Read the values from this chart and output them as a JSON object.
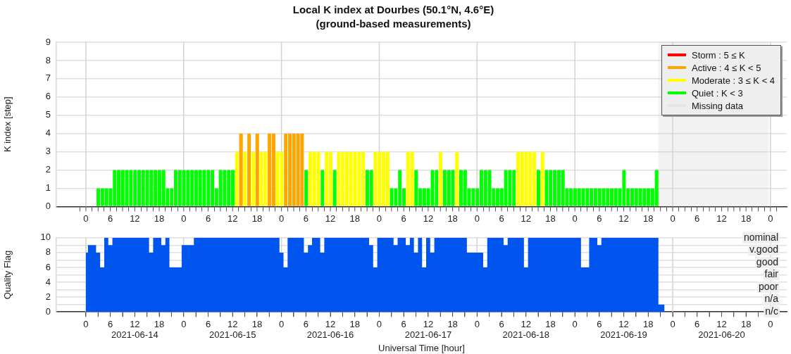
{
  "chart_data": [
    {
      "type": "bar",
      "title": "Local K index at Dourbes (50.1°N, 4.6°E)",
      "subtitle": "(ground-based measurements)",
      "ylabel": "K index [step]",
      "series": [
        {
          "name": "Storm : 5 ≤ K",
          "color": "#ff0000"
        },
        {
          "name": "Active : 4 ≤ K < 5",
          "color": "#ffa500",
          "x": [
            "2021-06-15T14:00",
            "2021-06-15T16:00",
            "2021-06-15T18:00",
            "2021-06-15T21:00",
            "2021-06-15T22:00",
            "2021-06-16T01:00",
            "2021-06-16T02:00",
            "2021-06-16T03:00",
            "2021-06-16T04:00",
            "2021-06-16T05:00"
          ],
          "values": [
            4,
            4,
            4,
            4,
            4,
            4,
            4,
            4,
            4,
            4
          ]
        },
        {
          "name": "Moderate : 3 ≤ K < 4",
          "color": "#ffff00",
          "x": [
            "2021-06-15T13:00",
            "2021-06-15T15:00",
            "2021-06-15T17:00",
            "2021-06-15T19:00",
            "2021-06-15T20:00",
            "2021-06-15T23:00",
            "2021-06-16T00:00",
            "2021-06-16T07:00",
            "2021-06-16T08:00",
            "2021-06-16T09:00",
            "2021-06-16T11:00",
            "2021-06-16T12:00",
            "2021-06-16T14:00",
            "2021-06-16T15:00",
            "2021-06-16T16:00",
            "2021-06-16T17:00",
            "2021-06-16T18:00",
            "2021-06-16T19:00",
            "2021-06-16T20:00",
            "2021-06-16T23:00",
            "2021-06-17T00:00",
            "2021-06-17T01:00",
            "2021-06-17T02:00",
            "2021-06-17T07:00",
            "2021-06-17T08:00",
            "2021-06-17T15:00",
            "2021-06-17T19:00",
            "2021-06-18T10:00",
            "2021-06-18T11:00",
            "2021-06-18T12:00",
            "2021-06-18T13:00",
            "2021-06-18T14:00",
            "2021-06-18T16:00"
          ],
          "values": [
            3,
            3,
            3,
            3,
            3,
            3,
            3,
            3,
            3,
            3,
            3,
            3,
            3,
            3,
            3,
            3,
            3,
            3,
            3,
            3,
            3,
            3,
            3,
            3,
            3,
            3,
            3,
            3,
            3,
            3,
            3,
            3,
            3
          ]
        },
        {
          "name": "Quiet : K < 3",
          "color": "#00ff00",
          "x": [
            "2021-06-14T03:00",
            "2021-06-14T04:00",
            "2021-06-14T05:00",
            "2021-06-14T06:00",
            "2021-06-14T07:00",
            "2021-06-14T08:00",
            "2021-06-14T09:00",
            "2021-06-14T10:00",
            "2021-06-14T11:00",
            "2021-06-14T12:00",
            "2021-06-14T13:00",
            "2021-06-14T14:00",
            "2021-06-14T15:00",
            "2021-06-14T16:00",
            "2021-06-14T17:00",
            "2021-06-14T18:00",
            "2021-06-14T19:00",
            "2021-06-14T20:00",
            "2021-06-14T21:00",
            "2021-06-14T22:00",
            "2021-06-14T23:00",
            "2021-06-15T00:00",
            "2021-06-15T01:00",
            "2021-06-15T02:00",
            "2021-06-15T03:00",
            "2021-06-15T04:00",
            "2021-06-15T05:00",
            "2021-06-15T06:00",
            "2021-06-15T07:00",
            "2021-06-15T08:00",
            "2021-06-15T09:00",
            "2021-06-15T10:00",
            "2021-06-15T11:00",
            "2021-06-15T12:00",
            "2021-06-16T06:00",
            "2021-06-16T10:00",
            "2021-06-16T13:00",
            "2021-06-16T21:00",
            "2021-06-16T22:00",
            "2021-06-17T03:00",
            "2021-06-17T04:00",
            "2021-06-17T05:00",
            "2021-06-17T06:00",
            "2021-06-17T09:00",
            "2021-06-17T10:00",
            "2021-06-17T11:00",
            "2021-06-17T12:00",
            "2021-06-17T13:00",
            "2021-06-17T14:00",
            "2021-06-17T16:00",
            "2021-06-17T17:00",
            "2021-06-17T18:00",
            "2021-06-17T20:00",
            "2021-06-17T21:00",
            "2021-06-17T22:00",
            "2021-06-17T23:00",
            "2021-06-18T00:00",
            "2021-06-18T01:00",
            "2021-06-18T02:00",
            "2021-06-18T03:00",
            "2021-06-18T04:00",
            "2021-06-18T05:00",
            "2021-06-18T06:00",
            "2021-06-18T07:00",
            "2021-06-18T08:00",
            "2021-06-18T09:00",
            "2021-06-18T15:00",
            "2021-06-18T17:00",
            "2021-06-18T18:00",
            "2021-06-18T19:00",
            "2021-06-18T20:00",
            "2021-06-18T21:00",
            "2021-06-18T22:00",
            "2021-06-18T23:00",
            "2021-06-19T00:00",
            "2021-06-19T01:00",
            "2021-06-19T02:00",
            "2021-06-19T03:00",
            "2021-06-19T04:00",
            "2021-06-19T05:00",
            "2021-06-19T06:00",
            "2021-06-19T07:00",
            "2021-06-19T08:00",
            "2021-06-19T09:00",
            "2021-06-19T10:00",
            "2021-06-19T11:00",
            "2021-06-19T12:00",
            "2021-06-19T13:00",
            "2021-06-19T14:00",
            "2021-06-19T15:00",
            "2021-06-19T16:00",
            "2021-06-19T17:00",
            "2021-06-19T18:00",
            "2021-06-19T19:00",
            "2021-06-19T20:00"
          ],
          "values": [
            1,
            1,
            1,
            1,
            2,
            2,
            2,
            2,
            2,
            2,
            2,
            2,
            2,
            2,
            2,
            2,
            2,
            1,
            1,
            2,
            2,
            2,
            2,
            2,
            2,
            2,
            2,
            2,
            2,
            1,
            2,
            2,
            2,
            2,
            2,
            2,
            2,
            2,
            2,
            1,
            1,
            2,
            1,
            2,
            1,
            1,
            1,
            2,
            2,
            2,
            2,
            2,
            2,
            2,
            1,
            1,
            1,
            2,
            2,
            2,
            1,
            1,
            1,
            2,
            2,
            2,
            2,
            2,
            2,
            2,
            2,
            2,
            1,
            1,
            1,
            1,
            1,
            1,
            1,
            1,
            1,
            1,
            1,
            1,
            1,
            1,
            2,
            1,
            1,
            1,
            1,
            1,
            1,
            1,
            2
          ]
        }
      ],
      "xlim": [
        "2021-06-13T16:45",
        "2021-06-21T04:00"
      ],
      "xticks": [
        {
          "value": "2021-06-14T00:00",
          "label": "0"
        },
        {
          "value": "2021-06-14T03:00",
          "label": null
        },
        {
          "value": "2021-06-14T06:00",
          "label": "6"
        },
        {
          "value": "2021-06-14T09:00",
          "label": null
        },
        {
          "value": "2021-06-14T12:00",
          "label": "12"
        },
        {
          "value": "2021-06-14T15:00",
          "label": null
        },
        {
          "value": "2021-06-14T18:00",
          "label": "18"
        },
        {
          "value": "2021-06-14T21:00",
          "label": null
        },
        {
          "value": "2021-06-15T00:00",
          "label": "0"
        },
        {
          "value": "2021-06-15T03:00",
          "label": null
        },
        {
          "value": "2021-06-15T06:00",
          "label": "6"
        },
        {
          "value": "2021-06-15T09:00",
          "label": null
        },
        {
          "value": "2021-06-15T12:00",
          "label": "12"
        },
        {
          "value": "2021-06-15T15:00",
          "label": null
        },
        {
          "value": "2021-06-15T18:00",
          "label": "18"
        },
        {
          "value": "2021-06-15T21:00",
          "label": null
        },
        {
          "value": "2021-06-16T00:00",
          "label": "0"
        },
        {
          "value": "2021-06-16T03:00",
          "label": null
        },
        {
          "value": "2021-06-16T06:00",
          "label": "6"
        },
        {
          "value": "2021-06-16T09:00",
          "label": null
        },
        {
          "value": "2021-06-16T12:00",
          "label": "12"
        },
        {
          "value": "2021-06-16T15:00",
          "label": null
        },
        {
          "value": "2021-06-16T18:00",
          "label": "18"
        },
        {
          "value": "2021-06-16T21:00",
          "label": null
        },
        {
          "value": "2021-06-17T00:00",
          "label": "0"
        },
        {
          "value": "2021-06-17T03:00",
          "label": null
        },
        {
          "value": "2021-06-17T06:00",
          "label": "6"
        },
        {
          "value": "2021-06-17T09:00",
          "label": null
        },
        {
          "value": "2021-06-17T12:00",
          "label": "12"
        },
        {
          "value": "2021-06-17T15:00",
          "label": null
        },
        {
          "value": "2021-06-17T18:00",
          "label": "18"
        },
        {
          "value": "2021-06-17T21:00",
          "label": null
        },
        {
          "value": "2021-06-18T00:00",
          "label": "0"
        },
        {
          "value": "2021-06-18T03:00",
          "label": null
        },
        {
          "value": "2021-06-18T06:00",
          "label": "6"
        },
        {
          "value": "2021-06-18T09:00",
          "label": null
        },
        {
          "value": "2021-06-18T12:00",
          "label": "12"
        },
        {
          "value": "2021-06-18T15:00",
          "label": null
        },
        {
          "value": "2021-06-18T18:00",
          "label": "18"
        },
        {
          "value": "2021-06-18T21:00",
          "label": null
        },
        {
          "value": "2021-06-19T00:00",
          "label": "0"
        },
        {
          "value": "2021-06-19T03:00",
          "label": null
        },
        {
          "value": "2021-06-19T06:00",
          "label": "6"
        },
        {
          "value": "2021-06-19T09:00",
          "label": null
        },
        {
          "value": "2021-06-19T12:00",
          "label": "12"
        },
        {
          "value": "2021-06-19T15:00",
          "label": null
        },
        {
          "value": "2021-06-19T18:00",
          "label": "18"
        },
        {
          "value": "2021-06-19T21:00",
          "label": null
        },
        {
          "value": "2021-06-20T00:00",
          "label": "0"
        },
        {
          "value": "2021-06-20T03:00",
          "label": null
        },
        {
          "value": "2021-06-20T06:00",
          "label": "6"
        },
        {
          "value": "2021-06-20T09:00",
          "label": null
        },
        {
          "value": "2021-06-20T12:00",
          "label": "12"
        },
        {
          "value": "2021-06-20T15:00",
          "label": null
        },
        {
          "value": "2021-06-20T18:00",
          "label": "18"
        },
        {
          "value": "2021-06-20T21:00",
          "label": null
        },
        {
          "value": "2021-06-21T00:00",
          "label": "0"
        }
      ],
      "ylim": [
        0,
        9
      ],
      "yticks": [
        0,
        1,
        2,
        3,
        4,
        5,
        6,
        7,
        8,
        9
      ],
      "grid": "y",
      "legend": "top right",
      "bands": [
        {
          "axis": "x",
          "from": "2021-06-19T20:30",
          "to": "2021-06-20T23:30",
          "label": "Missing data",
          "color": "#c0c0c0"
        }
      ],
      "ref_lines": [
        {
          "axis": "x",
          "value": "2021-06-14T00:00",
          "color": "#d3d3d3"
        },
        {
          "axis": "x",
          "value": "2021-06-15T00:00",
          "color": "#d3d3d3"
        },
        {
          "axis": "x",
          "value": "2021-06-16T00:00",
          "color": "#d3d3d3"
        },
        {
          "axis": "x",
          "value": "2021-06-17T00:00",
          "color": "#d3d3d3"
        },
        {
          "axis": "x",
          "value": "2021-06-18T00:00",
          "color": "#d3d3d3"
        },
        {
          "axis": "x",
          "value": "2021-06-19T00:00",
          "color": "#d3d3d3"
        },
        {
          "axis": "x",
          "value": "2021-06-20T00:00",
          "color": "#d3d3d3"
        },
        {
          "axis": "x",
          "value": "2021-06-21T00:00",
          "color": "#d3d3d3"
        }
      ]
    },
    {
      "type": "area",
      "ylabel": "Quality Flag",
      "xlabel": "Universal Time [hour]",
      "color": "#0055ee",
      "x": [
        "2021-06-14T00:00",
        "2021-06-14T01:00",
        "2021-06-14T02:00",
        "2021-06-14T03:00",
        "2021-06-14T04:00",
        "2021-06-14T05:00",
        "2021-06-14T06:00",
        "2021-06-14T07:00",
        "2021-06-14T08:00",
        "2021-06-14T09:00",
        "2021-06-14T10:00",
        "2021-06-14T11:00",
        "2021-06-14T12:00",
        "2021-06-14T13:00",
        "2021-06-14T14:00",
        "2021-06-14T15:00",
        "2021-06-14T16:00",
        "2021-06-14T17:00",
        "2021-06-14T18:00",
        "2021-06-14T19:00",
        "2021-06-14T20:00",
        "2021-06-14T21:00",
        "2021-06-14T22:00",
        "2021-06-14T23:00",
        "2021-06-15T00:00",
        "2021-06-15T01:00",
        "2021-06-15T02:00",
        "2021-06-15T03:00",
        "2021-06-15T04:00",
        "2021-06-15T05:00",
        "2021-06-15T06:00",
        "2021-06-15T07:00",
        "2021-06-15T08:00",
        "2021-06-15T09:00",
        "2021-06-15T10:00",
        "2021-06-15T11:00",
        "2021-06-15T12:00",
        "2021-06-15T13:00",
        "2021-06-15T14:00",
        "2021-06-15T15:00",
        "2021-06-15T16:00",
        "2021-06-15T17:00",
        "2021-06-15T18:00",
        "2021-06-15T19:00",
        "2021-06-15T20:00",
        "2021-06-15T21:00",
        "2021-06-15T22:00",
        "2021-06-15T23:00",
        "2021-06-16T00:00",
        "2021-06-16T01:00",
        "2021-06-16T02:00",
        "2021-06-16T03:00",
        "2021-06-16T04:00",
        "2021-06-16T05:00",
        "2021-06-16T06:00",
        "2021-06-16T07:00",
        "2021-06-16T08:00",
        "2021-06-16T09:00",
        "2021-06-16T10:00",
        "2021-06-16T11:00",
        "2021-06-16T12:00",
        "2021-06-16T13:00",
        "2021-06-16T14:00",
        "2021-06-16T15:00",
        "2021-06-16T16:00",
        "2021-06-16T17:00",
        "2021-06-16T18:00",
        "2021-06-16T19:00",
        "2021-06-16T20:00",
        "2021-06-16T21:00",
        "2021-06-16T22:00",
        "2021-06-16T23:00",
        "2021-06-17T00:00",
        "2021-06-17T01:00",
        "2021-06-17T02:00",
        "2021-06-17T03:00",
        "2021-06-17T04:00",
        "2021-06-17T05:00",
        "2021-06-17T06:00",
        "2021-06-17T07:00",
        "2021-06-17T08:00",
        "2021-06-17T09:00",
        "2021-06-17T10:00",
        "2021-06-17T11:00",
        "2021-06-17T12:00",
        "2021-06-17T13:00",
        "2021-06-17T14:00",
        "2021-06-17T15:00",
        "2021-06-17T16:00",
        "2021-06-17T17:00",
        "2021-06-17T18:00",
        "2021-06-17T19:00",
        "2021-06-17T20:00",
        "2021-06-17T21:00",
        "2021-06-17T22:00",
        "2021-06-17T23:00",
        "2021-06-18T00:00",
        "2021-06-18T01:00",
        "2021-06-18T02:00",
        "2021-06-18T03:00",
        "2021-06-18T04:00",
        "2021-06-18T05:00",
        "2021-06-18T06:00",
        "2021-06-18T07:00",
        "2021-06-18T08:00",
        "2021-06-18T09:00",
        "2021-06-18T10:00",
        "2021-06-18T11:00",
        "2021-06-18T12:00",
        "2021-06-18T13:00",
        "2021-06-18T14:00",
        "2021-06-18T15:00",
        "2021-06-18T16:00",
        "2021-06-18T17:00",
        "2021-06-18T18:00",
        "2021-06-18T19:00",
        "2021-06-18T20:00",
        "2021-06-18T21:00",
        "2021-06-18T22:00",
        "2021-06-18T23:00",
        "2021-06-19T00:00",
        "2021-06-19T01:00",
        "2021-06-19T02:00",
        "2021-06-19T03:00",
        "2021-06-19T04:00",
        "2021-06-19T05:00",
        "2021-06-19T06:00",
        "2021-06-19T07:00",
        "2021-06-19T08:00",
        "2021-06-19T09:00",
        "2021-06-19T10:00",
        "2021-06-19T11:00",
        "2021-06-19T12:00",
        "2021-06-19T13:00",
        "2021-06-19T14:00",
        "2021-06-19T15:00",
        "2021-06-19T16:00",
        "2021-06-19T17:00",
        "2021-06-19T18:00",
        "2021-06-19T19:00",
        "2021-06-19T20:00",
        "2021-06-19T21:00",
        "2021-06-19T22:00"
      ],
      "values": [
        8,
        9,
        9,
        8,
        6,
        10,
        9,
        10,
        10,
        10,
        10,
        10,
        10,
        10,
        10,
        10,
        8,
        10,
        10,
        9,
        10,
        6,
        6,
        6,
        9,
        9,
        9,
        10,
        10,
        10,
        10,
        10,
        10,
        10,
        10,
        10,
        10,
        10,
        10,
        10,
        10,
        10,
        10,
        10,
        10,
        10,
        10,
        10,
        8,
        6,
        10,
        10,
        10,
        10,
        8,
        9,
        10,
        10,
        8,
        10,
        10,
        10,
        10,
        10,
        10,
        10,
        10,
        10,
        10,
        10,
        9,
        6,
        10,
        10,
        10,
        10,
        9,
        10,
        10,
        9,
        10,
        8,
        10,
        6,
        10,
        8,
        10,
        10,
        10,
        10,
        10,
        10,
        10,
        10,
        8,
        8,
        8,
        8,
        6,
        10,
        10,
        10,
        10,
        9,
        10,
        10,
        10,
        10,
        6,
        10,
        10,
        10,
        10,
        10,
        10,
        10,
        10,
        10,
        10,
        10,
        10,
        10,
        6,
        6,
        10,
        10,
        9,
        10,
        10,
        10,
        10,
        10,
        10,
        10,
        10,
        10,
        10,
        10,
        10,
        10,
        10,
        1,
        1
      ],
      "xlim": [
        "2021-06-13T16:45",
        "2021-06-21T04:00"
      ],
      "xticks": [
        {
          "value": "2021-06-14T00:00",
          "label": "0"
        },
        {
          "value": "2021-06-14T03:00",
          "label": null
        },
        {
          "value": "2021-06-14T06:00",
          "label": "6"
        },
        {
          "value": "2021-06-14T09:00",
          "label": null
        },
        {
          "value": "2021-06-14T12:00",
          "label": "12\n2021-06-14"
        },
        {
          "value": "2021-06-14T15:00",
          "label": null
        },
        {
          "value": "2021-06-14T18:00",
          "label": "18"
        },
        {
          "value": "2021-06-14T21:00",
          "label": null
        },
        {
          "value": "2021-06-15T00:00",
          "label": "0"
        },
        {
          "value": "2021-06-15T03:00",
          "label": null
        },
        {
          "value": "2021-06-15T06:00",
          "label": "6"
        },
        {
          "value": "2021-06-15T09:00",
          "label": null
        },
        {
          "value": "2021-06-15T12:00",
          "label": "12\n2021-06-15"
        },
        {
          "value": "2021-06-15T15:00",
          "label": null
        },
        {
          "value": "2021-06-15T18:00",
          "label": "18"
        },
        {
          "value": "2021-06-15T21:00",
          "label": null
        },
        {
          "value": "2021-06-16T00:00",
          "label": "0"
        },
        {
          "value": "2021-06-16T03:00",
          "label": null
        },
        {
          "value": "2021-06-16T06:00",
          "label": "6"
        },
        {
          "value": "2021-06-16T09:00",
          "label": null
        },
        {
          "value": "2021-06-16T12:00",
          "label": "12\n2021-06-16"
        },
        {
          "value": "2021-06-16T15:00",
          "label": null
        },
        {
          "value": "2021-06-16T18:00",
          "label": "18"
        },
        {
          "value": "2021-06-16T21:00",
          "label": null
        },
        {
          "value": "2021-06-17T00:00",
          "label": "0"
        },
        {
          "value": "2021-06-17T03:00",
          "label": null
        },
        {
          "value": "2021-06-17T06:00",
          "label": "6"
        },
        {
          "value": "2021-06-17T09:00",
          "label": null
        },
        {
          "value": "2021-06-17T12:00",
          "label": "12\n2021-06-17"
        },
        {
          "value": "2021-06-17T15:00",
          "label": null
        },
        {
          "value": "2021-06-17T18:00",
          "label": "18"
        },
        {
          "value": "2021-06-17T21:00",
          "label": null
        },
        {
          "value": "2021-06-18T00:00",
          "label": "0"
        },
        {
          "value": "2021-06-18T03:00",
          "label": null
        },
        {
          "value": "2021-06-18T06:00",
          "label": "6"
        },
        {
          "value": "2021-06-18T09:00",
          "label": null
        },
        {
          "value": "2021-06-18T12:00",
          "label": "12\n2021-06-18"
        },
        {
          "value": "2021-06-18T15:00",
          "label": null
        },
        {
          "value": "2021-06-18T18:00",
          "label": "18"
        },
        {
          "value": "2021-06-18T21:00",
          "label": null
        },
        {
          "value": "2021-06-19T00:00",
          "label": "0"
        },
        {
          "value": "2021-06-19T03:00",
          "label": null
        },
        {
          "value": "2021-06-19T06:00",
          "label": "6"
        },
        {
          "value": "2021-06-19T09:00",
          "label": null
        },
        {
          "value": "2021-06-19T12:00",
          "label": "12\n2021-06-19"
        },
        {
          "value": "2021-06-19T15:00",
          "label": null
        },
        {
          "value": "2021-06-19T18:00",
          "label": "18"
        },
        {
          "value": "2021-06-19T21:00",
          "label": null
        },
        {
          "value": "2021-06-20T00:00",
          "label": "0"
        },
        {
          "value": "2021-06-20T03:00",
          "label": null
        },
        {
          "value": "2021-06-20T06:00",
          "label": "6"
        },
        {
          "value": "2021-06-20T09:00",
          "label": null
        },
        {
          "value": "2021-06-20T12:00",
          "label": "12\n2021-06-20"
        },
        {
          "value": "2021-06-20T15:00",
          "label": null
        },
        {
          "value": "2021-06-20T18:00",
          "label": "18"
        },
        {
          "value": "2021-06-20T21:00",
          "label": null
        },
        {
          "value": "2021-06-21T00:00",
          "label": "0"
        }
      ],
      "ylim": [
        0,
        10
      ],
      "yticks": [
        0,
        {
          "value": 1,
          "label": null
        },
        2,
        {
          "value": 3,
          "label": null
        },
        4,
        {
          "value": 5,
          "label": null
        },
        6,
        {
          "value": 7,
          "label": null
        },
        8,
        {
          "value": 9,
          "label": null
        },
        10
      ],
      "annotations": [
        "nominal",
        "v.good",
        "good",
        "fair",
        "poor",
        "n/a",
        "n/c"
      ],
      "grid": "y",
      "ref_lines": [
        {
          "axis": "x",
          "value": "2021-06-14T00:00",
          "color": "#d3d3d3"
        },
        {
          "axis": "x",
          "value": "2021-06-15T00:00",
          "color": "#d3d3d3"
        },
        {
          "axis": "x",
          "value": "2021-06-16T00:00",
          "color": "#d3d3d3"
        },
        {
          "axis": "x",
          "value": "2021-06-18T00:00",
          "color": "#d3d3d3"
        },
        {
          "axis": "x",
          "value": "2021-06-20T00:00",
          "color": "#d3d3d3"
        },
        {
          "axis": "x",
          "value": "2021-06-21T00:00",
          "color": "#d3d3d3"
        }
      ]
    }
  ]
}
